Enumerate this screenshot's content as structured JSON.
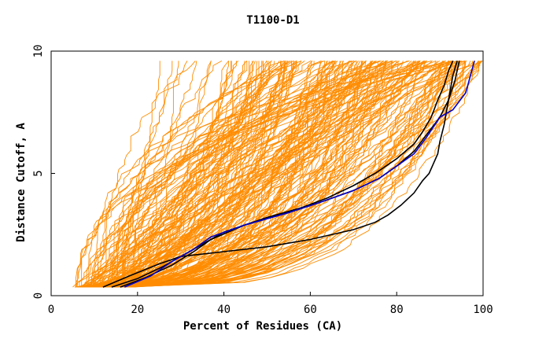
{
  "chart_data": {
    "type": "line",
    "title": "T1100-D1",
    "xlabel": "Percent of Residues (CA)",
    "ylabel": "Distance Cutoff, A",
    "xlim": [
      0,
      100
    ],
    "ylim": [
      0,
      10
    ],
    "xticks": [
      "0",
      "20",
      "40",
      "60",
      "80",
      "100"
    ],
    "yticks": [
      "0",
      "5",
      "10"
    ],
    "grid": false,
    "legend": "none",
    "colors": {
      "background_models": "#ff8c00",
      "highlight_black": "#000000",
      "highlight_blue": "#0000cc"
    },
    "series": [
      {
        "color": "black",
        "x": [
          12,
          18,
          25,
          30,
          40,
          50,
          60,
          70,
          75,
          78,
          81,
          84,
          86,
          87.5,
          88.5,
          89.5,
          90,
          91,
          92,
          93,
          94
        ],
        "y": [
          0.35,
          0.8,
          1.3,
          1.6,
          1.8,
          2.0,
          2.3,
          2.7,
          3.0,
          3.3,
          3.7,
          4.2,
          4.7,
          5.0,
          5.4,
          5.8,
          6.3,
          7.0,
          8.0,
          9.0,
          9.6
        ]
      },
      {
        "color": "black",
        "x": [
          14,
          20,
          26,
          31,
          36,
          40,
          50,
          58,
          64,
          70,
          75,
          80,
          84,
          86,
          88,
          89.5,
          91,
          92,
          93
        ],
        "y": [
          0.35,
          0.7,
          1.2,
          1.7,
          2.2,
          2.6,
          3.2,
          3.6,
          4.0,
          4.5,
          5.0,
          5.6,
          6.2,
          6.7,
          7.3,
          8.0,
          8.6,
          9.2,
          9.6
        ]
      },
      {
        "color": "black",
        "x": [
          16,
          22,
          28,
          33,
          37,
          45,
          55,
          62,
          70,
          76,
          80,
          84,
          87,
          90,
          92,
          93.5,
          94.5
        ],
        "y": [
          0.35,
          0.75,
          1.25,
          1.8,
          2.3,
          2.9,
          3.4,
          3.8,
          4.3,
          4.8,
          5.3,
          5.9,
          6.6,
          7.3,
          8.0,
          8.8,
          9.6
        ]
      },
      {
        "color": "blue",
        "x": [
          17,
          23,
          28,
          33,
          37,
          45,
          55,
          62,
          70,
          76,
          80,
          84,
          87,
          90,
          93,
          96,
          98
        ],
        "y": [
          0.35,
          0.8,
          1.4,
          1.9,
          2.4,
          2.9,
          3.4,
          3.8,
          4.3,
          4.8,
          5.3,
          5.8,
          6.5,
          7.3,
          7.6,
          8.3,
          9.6
        ]
      }
    ]
  }
}
